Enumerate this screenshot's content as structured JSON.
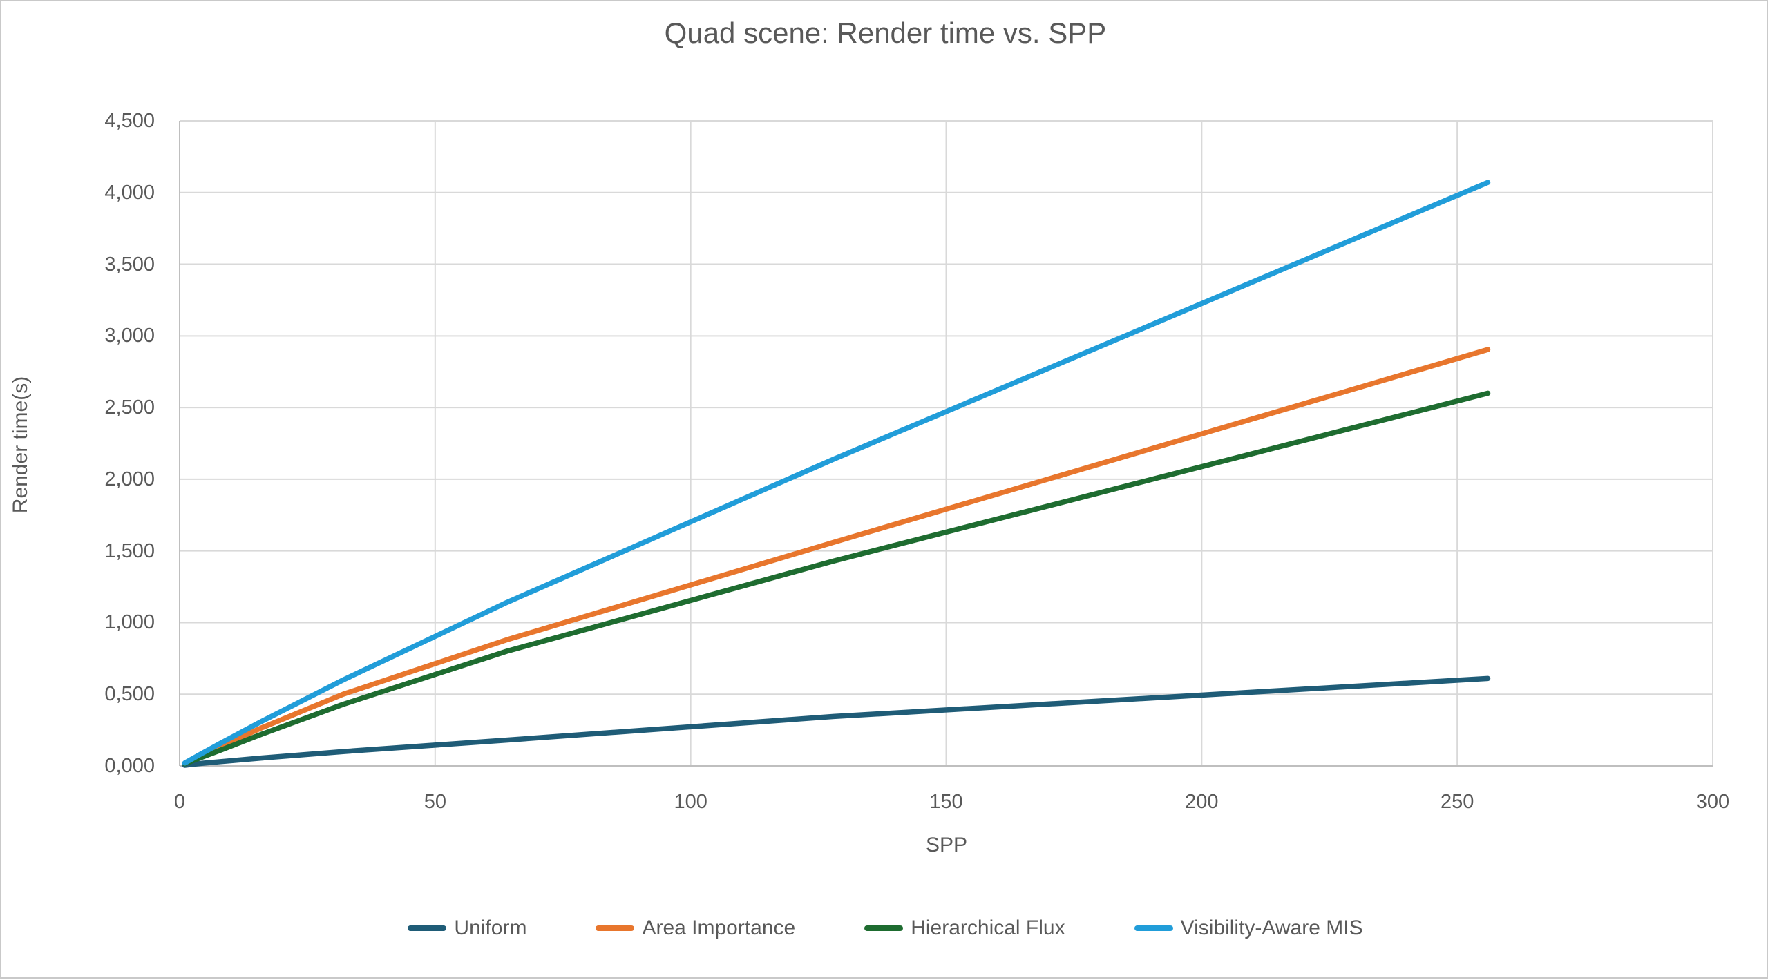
{
  "window": {
    "background": "#ffffff",
    "border_color": "#c9c9c9"
  },
  "chart_data": {
    "type": "line",
    "title": "Quad scene: Render time vs. SPP",
    "xlabel": "SPP",
    "ylabel": "Render time(s)",
    "xlim": [
      0,
      300
    ],
    "ylim": [
      0,
      4500
    ],
    "grid": true,
    "legend_position": "bottom",
    "x_ticks": [
      0,
      50,
      100,
      150,
      200,
      250,
      300
    ],
    "x_tick_labels": [
      "0",
      "50",
      "100",
      "150",
      "200",
      "250",
      "300"
    ],
    "y_ticks": [
      0,
      500,
      1000,
      1500,
      2000,
      2500,
      3000,
      3500,
      4000,
      4500
    ],
    "y_tick_labels": [
      "0,000",
      "0,500",
      "1,000",
      "1,500",
      "2,000",
      "2,500",
      "3,000",
      "3,500",
      "4,000",
      "4,500"
    ],
    "x": [
      1,
      2,
      4,
      8,
      16,
      32,
      64,
      128,
      256
    ],
    "series": [
      {
        "name": "Uniform",
        "color": "#1f5c77",
        "values": [
          5,
          9,
          17,
          30,
          55,
          100,
          180,
          345,
          610
        ]
      },
      {
        "name": "Area Importance",
        "color": "#e8762d",
        "values": [
          18,
          35,
          68,
          135,
          265,
          500,
          880,
          1560,
          2905
        ]
      },
      {
        "name": "Hierarchical Flux",
        "color": "#1e6c30",
        "values": [
          15,
          29,
          56,
          110,
          220,
          430,
          800,
          1430,
          2600
        ]
      },
      {
        "name": "Visibility-Aware MIS",
        "color": "#219dd9",
        "values": [
          20,
          40,
          80,
          158,
          310,
          600,
          1140,
          2140,
          4070
        ]
      }
    ],
    "colors": {
      "text": "#595959",
      "gridline": "#d9d9d9",
      "axis": "#bfbfbf"
    }
  }
}
